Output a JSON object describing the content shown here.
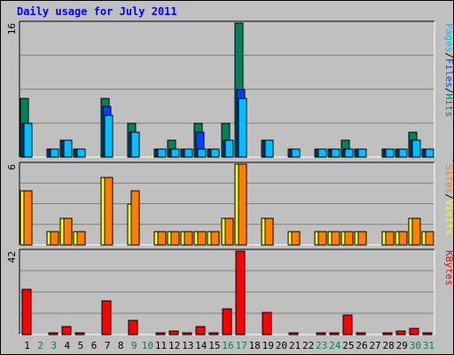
{
  "title": "Daily usage for July 2011",
  "colors": {
    "background": "#c0c0c0",
    "plot": "#c0c0c0",
    "grid": "#808080",
    "title": "#0000ff",
    "hits": "#00805c",
    "files": "#0040ff",
    "pages": "#00c0ff",
    "visits": "#ffff00",
    "sites": "#ff8000",
    "kbytes": "#ff0000",
    "weekday_label": "#000000",
    "weekend_label": "#00805c"
  },
  "chart_data": [
    {
      "type": "bar",
      "name": "hits-files-pages",
      "ymax_label": "16",
      "legend": [
        "Pages",
        "/",
        "Files",
        "/",
        "Hits"
      ],
      "legend_colors": [
        "#00c0ff",
        "#000000",
        "#0040ff",
        "#000000",
        "#00805c"
      ],
      "categories": [
        "1",
        "2",
        "3",
        "4",
        "5",
        "6",
        "7",
        "8",
        "9",
        "10",
        "11",
        "12",
        "13",
        "14",
        "15",
        "16",
        "17",
        "18",
        "19",
        "20",
        "21",
        "22",
        "23",
        "24",
        "25",
        "26",
        "27",
        "28",
        "29",
        "30",
        "31"
      ],
      "ylim": [
        0,
        16
      ],
      "series": [
        {
          "name": "Hits",
          "values": [
            7,
            0,
            1,
            2,
            1,
            0,
            7,
            0,
            4,
            0,
            1,
            2,
            1,
            4,
            1,
            4,
            16,
            0,
            2,
            0,
            1,
            0,
            1,
            1,
            2,
            1,
            0,
            1,
            1,
            3,
            1
          ]
        },
        {
          "name": "Files",
          "values": [
            4,
            0,
            1,
            2,
            1,
            0,
            6,
            0,
            3,
            0,
            1,
            1,
            1,
            3,
            1,
            2,
            8,
            0,
            2,
            0,
            1,
            0,
            1,
            1,
            1,
            1,
            0,
            1,
            1,
            2,
            1
          ]
        },
        {
          "name": "Pages",
          "values": [
            4,
            0,
            1,
            2,
            1,
            0,
            5,
            0,
            3,
            0,
            1,
            1,
            1,
            1,
            1,
            2,
            7,
            0,
            2,
            0,
            1,
            0,
            1,
            1,
            1,
            1,
            0,
            1,
            1,
            2,
            1
          ]
        }
      ]
    },
    {
      "type": "bar",
      "name": "sites-visits",
      "ymax_label": "6",
      "legend": [
        "Sites",
        "/",
        "Visits"
      ],
      "legend_colors": [
        "#ff8000",
        "#000000",
        "#ffff00"
      ],
      "categories": [
        "1",
        "2",
        "3",
        "4",
        "5",
        "6",
        "7",
        "8",
        "9",
        "10",
        "11",
        "12",
        "13",
        "14",
        "15",
        "16",
        "17",
        "18",
        "19",
        "20",
        "21",
        "22",
        "23",
        "24",
        "25",
        "26",
        "27",
        "28",
        "29",
        "30",
        "31"
      ],
      "ylim": [
        0,
        6
      ],
      "series": [
        {
          "name": "Visits",
          "values": [
            4,
            0,
            1,
            2,
            1,
            0,
            5,
            0,
            3,
            0,
            1,
            1,
            1,
            1,
            1,
            2,
            6,
            0,
            2,
            0,
            1,
            0,
            1,
            1,
            1,
            1,
            0,
            1,
            1,
            2,
            1
          ]
        },
        {
          "name": "Sites",
          "values": [
            4,
            0,
            1,
            2,
            1,
            0,
            5,
            0,
            4,
            0,
            1,
            1,
            1,
            1,
            1,
            2,
            6,
            0,
            2,
            0,
            1,
            0,
            1,
            1,
            1,
            1,
            0,
            1,
            1,
            2,
            1
          ]
        }
      ]
    },
    {
      "type": "bar",
      "name": "kbytes",
      "ymax_label": "42",
      "legend": [
        "KBytes"
      ],
      "legend_colors": [
        "#ff0000"
      ],
      "categories": [
        "1",
        "2",
        "3",
        "4",
        "5",
        "6",
        "7",
        "8",
        "9",
        "10",
        "11",
        "12",
        "13",
        "14",
        "15",
        "16",
        "17",
        "18",
        "19",
        "20",
        "21",
        "22",
        "23",
        "24",
        "25",
        "26",
        "27",
        "28",
        "29",
        "30",
        "31"
      ],
      "ylim": [
        0,
        42
      ],
      "series": [
        {
          "name": "KBytes",
          "values": [
            23,
            0,
            1,
            4,
            1,
            0,
            17,
            0,
            7,
            0,
            1,
            2,
            1,
            4,
            1,
            13,
            42,
            0,
            11,
            0,
            1,
            0,
            1,
            1,
            10,
            1,
            0,
            1,
            2,
            3,
            1
          ]
        }
      ]
    }
  ],
  "x_axis": {
    "labels": [
      "1",
      "2",
      "3",
      "4",
      "5",
      "6",
      "7",
      "8",
      "9",
      "10",
      "11",
      "12",
      "13",
      "14",
      "15",
      "16",
      "17",
      "18",
      "19",
      "20",
      "21",
      "22",
      "23",
      "24",
      "25",
      "26",
      "27",
      "28",
      "29",
      "30",
      "31"
    ],
    "weekend": [
      2,
      3,
      9,
      10,
      16,
      17,
      23,
      24,
      30,
      31
    ]
  }
}
